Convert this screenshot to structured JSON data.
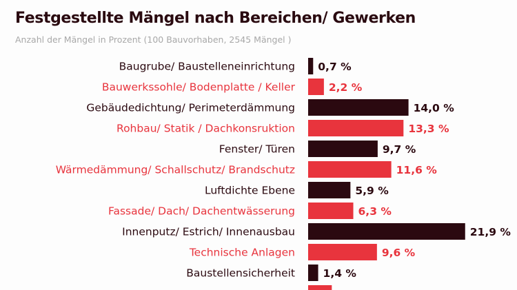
{
  "chart_data": {
    "type": "bar",
    "orientation": "horizontal",
    "title": "Festgestellte Mängel nach Bereichen/ Gewerken",
    "subtitle": "Anzahl der Mängel in Prozent (100 Bauvorhaben, 2545 Mängel )",
    "categories": [
      "Baugrube/ Baustelleneinrichtung",
      "Bauwerkssohle/ Bodenplatte / Keller",
      "Gebäudedichtung/ Perimeterdämmung",
      "Rohbau/ Statik / Dachkonsruktion",
      "Fenster/ Türen",
      "Wärmedämmung/ Schallschutz/ Brandschutz",
      "Luftdichte Ebene",
      "Fassade/ Dach/ Dachentwässerung",
      "Innenputz/ Estrich/ Innenausbau",
      "Technische Anlagen",
      "Baustellensicherheit",
      ""
    ],
    "values": [
      0.7,
      2.2,
      14.0,
      13.3,
      9.7,
      11.6,
      5.9,
      6.3,
      21.9,
      9.6,
      1.4,
      3.3
    ],
    "value_labels": [
      "0,7 %",
      "2,2 %",
      "14,0 %",
      "13,3 %",
      "9,7 %",
      "11,6 %",
      "5,9 %",
      "6,3 %",
      "21,9 %",
      "9,6 %",
      "1,4 %",
      ""
    ],
    "unit": "%",
    "xlim": [
      0,
      22
    ],
    "grid": false,
    "legend": "none",
    "colors": {
      "dark": "#2b0910",
      "red": "#e8343d"
    }
  }
}
